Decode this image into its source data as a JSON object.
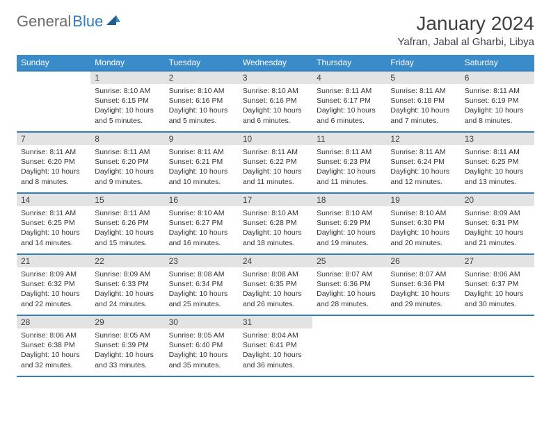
{
  "logo": {
    "general": "General",
    "blue": "Blue"
  },
  "title": "January 2024",
  "location": "Yafran, Jabal al Gharbi, Libya",
  "colors": {
    "header_bg": "#3a8bc9",
    "divider": "#2f7dbf",
    "daynum_bg": "#e3e3e3",
    "text": "#333333",
    "title_text": "#404040"
  },
  "weekdays": [
    "Sunday",
    "Monday",
    "Tuesday",
    "Wednesday",
    "Thursday",
    "Friday",
    "Saturday"
  ],
  "grid": {
    "first_weekday_index": 1,
    "days_in_month": 31
  },
  "days": {
    "1": {
      "sunrise": "8:10 AM",
      "sunset": "6:15 PM",
      "daylight": "10 hours and 5 minutes."
    },
    "2": {
      "sunrise": "8:10 AM",
      "sunset": "6:16 PM",
      "daylight": "10 hours and 5 minutes."
    },
    "3": {
      "sunrise": "8:10 AM",
      "sunset": "6:16 PM",
      "daylight": "10 hours and 6 minutes."
    },
    "4": {
      "sunrise": "8:11 AM",
      "sunset": "6:17 PM",
      "daylight": "10 hours and 6 minutes."
    },
    "5": {
      "sunrise": "8:11 AM",
      "sunset": "6:18 PM",
      "daylight": "10 hours and 7 minutes."
    },
    "6": {
      "sunrise": "8:11 AM",
      "sunset": "6:19 PM",
      "daylight": "10 hours and 8 minutes."
    },
    "7": {
      "sunrise": "8:11 AM",
      "sunset": "6:20 PM",
      "daylight": "10 hours and 8 minutes."
    },
    "8": {
      "sunrise": "8:11 AM",
      "sunset": "6:20 PM",
      "daylight": "10 hours and 9 minutes."
    },
    "9": {
      "sunrise": "8:11 AM",
      "sunset": "6:21 PM",
      "daylight": "10 hours and 10 minutes."
    },
    "10": {
      "sunrise": "8:11 AM",
      "sunset": "6:22 PM",
      "daylight": "10 hours and 11 minutes."
    },
    "11": {
      "sunrise": "8:11 AM",
      "sunset": "6:23 PM",
      "daylight": "10 hours and 11 minutes."
    },
    "12": {
      "sunrise": "8:11 AM",
      "sunset": "6:24 PM",
      "daylight": "10 hours and 12 minutes."
    },
    "13": {
      "sunrise": "8:11 AM",
      "sunset": "6:25 PM",
      "daylight": "10 hours and 13 minutes."
    },
    "14": {
      "sunrise": "8:11 AM",
      "sunset": "6:25 PM",
      "daylight": "10 hours and 14 minutes."
    },
    "15": {
      "sunrise": "8:11 AM",
      "sunset": "6:26 PM",
      "daylight": "10 hours and 15 minutes."
    },
    "16": {
      "sunrise": "8:10 AM",
      "sunset": "6:27 PM",
      "daylight": "10 hours and 16 minutes."
    },
    "17": {
      "sunrise": "8:10 AM",
      "sunset": "6:28 PM",
      "daylight": "10 hours and 18 minutes."
    },
    "18": {
      "sunrise": "8:10 AM",
      "sunset": "6:29 PM",
      "daylight": "10 hours and 19 minutes."
    },
    "19": {
      "sunrise": "8:10 AM",
      "sunset": "6:30 PM",
      "daylight": "10 hours and 20 minutes."
    },
    "20": {
      "sunrise": "8:09 AM",
      "sunset": "6:31 PM",
      "daylight": "10 hours and 21 minutes."
    },
    "21": {
      "sunrise": "8:09 AM",
      "sunset": "6:32 PM",
      "daylight": "10 hours and 22 minutes."
    },
    "22": {
      "sunrise": "8:09 AM",
      "sunset": "6:33 PM",
      "daylight": "10 hours and 24 minutes."
    },
    "23": {
      "sunrise": "8:08 AM",
      "sunset": "6:34 PM",
      "daylight": "10 hours and 25 minutes."
    },
    "24": {
      "sunrise": "8:08 AM",
      "sunset": "6:35 PM",
      "daylight": "10 hours and 26 minutes."
    },
    "25": {
      "sunrise": "8:07 AM",
      "sunset": "6:36 PM",
      "daylight": "10 hours and 28 minutes."
    },
    "26": {
      "sunrise": "8:07 AM",
      "sunset": "6:36 PM",
      "daylight": "10 hours and 29 minutes."
    },
    "27": {
      "sunrise": "8:06 AM",
      "sunset": "6:37 PM",
      "daylight": "10 hours and 30 minutes."
    },
    "28": {
      "sunrise": "8:06 AM",
      "sunset": "6:38 PM",
      "daylight": "10 hours and 32 minutes."
    },
    "29": {
      "sunrise": "8:05 AM",
      "sunset": "6:39 PM",
      "daylight": "10 hours and 33 minutes."
    },
    "30": {
      "sunrise": "8:05 AM",
      "sunset": "6:40 PM",
      "daylight": "10 hours and 35 minutes."
    },
    "31": {
      "sunrise": "8:04 AM",
      "sunset": "6:41 PM",
      "daylight": "10 hours and 36 minutes."
    }
  },
  "labels": {
    "sunrise": "Sunrise:",
    "sunset": "Sunset:",
    "daylight": "Daylight:"
  }
}
